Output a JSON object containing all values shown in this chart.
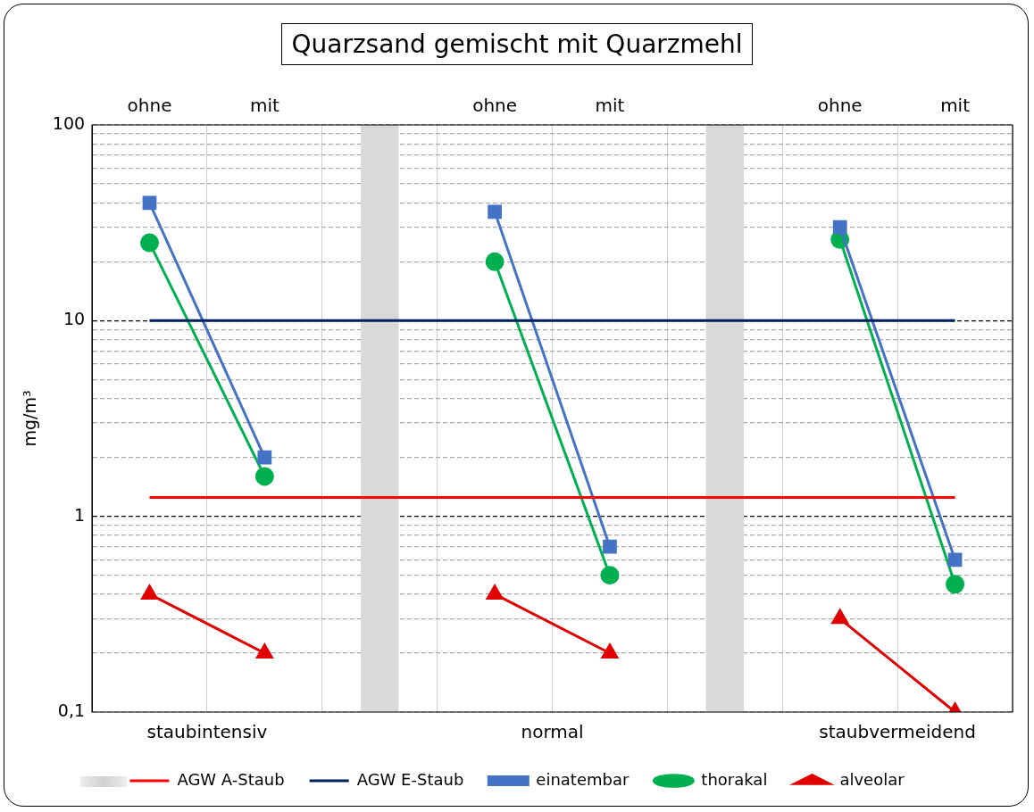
{
  "chart_data": {
    "type": "line",
    "title": "Quarzsand gemischt mit Quarzmehl",
    "ylabel": "mg/m³",
    "categories": [
      "ohne",
      "mit",
      null,
      "ohne",
      "mit",
      null,
      "ohne",
      "mit"
    ],
    "annotations": [
      "staubintensiv",
      "normal",
      "staubvermeidend"
    ],
    "series": [
      {
        "type": "bar",
        "color": "#d9d9d9",
        "values": [
          null,
          null,
          100,
          null,
          null,
          100,
          null,
          null
        ]
      },
      {
        "name": "AGW A-Staub",
        "color": "#ff0000",
        "values": [
          1.25,
          1.25,
          1.25,
          1.25,
          1.25,
          1.25,
          1.25,
          1.25
        ]
      },
      {
        "name": "AGW E-Staub",
        "color": "#002060",
        "values": [
          10,
          10,
          10,
          10,
          10,
          10,
          10,
          10
        ]
      },
      {
        "name": "einatembar",
        "color": "#4472c4",
        "marker": "square",
        "values": [
          40,
          2,
          null,
          36,
          0.7,
          null,
          30,
          0.6
        ]
      },
      {
        "name": "thorakal",
        "color": "#00b050",
        "marker": "circle",
        "values": [
          25,
          1.6,
          null,
          20,
          0.5,
          null,
          26,
          0.45
        ]
      },
      {
        "name": "alveolar",
        "color": "#e00000",
        "marker": "triangle",
        "values": [
          0.4,
          0.2,
          null,
          0.4,
          0.2,
          null,
          0.3,
          0.1
        ]
      }
    ],
    "log": "y",
    "ylim": [
      0.1,
      100
    ],
    "yticks": [
      {
        "value": 0.1,
        "label": "0,1"
      },
      {
        "value": 0.2,
        "label": null
      },
      {
        "value": 0.3,
        "label": null
      },
      {
        "value": 0.4,
        "label": null
      },
      {
        "value": 0.5,
        "label": null
      },
      {
        "value": 0.6,
        "label": null
      },
      {
        "value": 0.7,
        "label": null
      },
      {
        "value": 0.8,
        "label": null
      },
      {
        "value": 0.9,
        "label": null
      },
      1,
      {
        "value": 2,
        "label": null
      },
      {
        "value": 3,
        "label": null
      },
      {
        "value": 4,
        "label": null
      },
      {
        "value": 5,
        "label": null
      },
      {
        "value": 6,
        "label": null
      },
      {
        "value": 7,
        "label": null
      },
      {
        "value": 8,
        "label": null
      },
      {
        "value": 9,
        "label": null
      },
      10,
      {
        "value": 20,
        "label": null
      },
      {
        "value": 30,
        "label": null
      },
      {
        "value": 40,
        "label": null
      },
      {
        "value": 50,
        "label": null
      },
      {
        "value": 60,
        "label": null
      },
      {
        "value": 70,
        "label": null
      },
      {
        "value": 80,
        "label": null
      },
      {
        "value": 90,
        "label": null
      },
      100
    ],
    "grid": true,
    "legend": "bottom"
  }
}
